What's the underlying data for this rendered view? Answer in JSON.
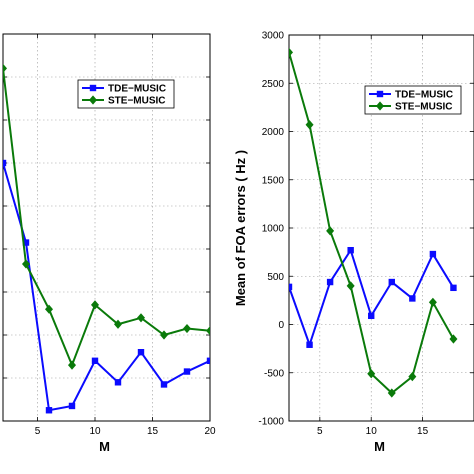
{
  "chart_data": [
    {
      "type": "line",
      "title": "",
      "xlabel": "M",
      "ylabel": "",
      "xlim": [
        2,
        20
      ],
      "x_ticks": [
        5,
        10,
        15,
        20
      ],
      "grid": true,
      "legend_position": "top-center",
      "series": [
        {
          "name": "TDE−MUSIC",
          "color": "#0b0bff",
          "marker": "square",
          "x": [
            2,
            4,
            6,
            8,
            10,
            12,
            14,
            16,
            18,
            20
          ],
          "y": [
            6.0,
            4.15,
            0.25,
            0.35,
            1.4,
            0.9,
            1.6,
            0.85,
            1.15,
            1.4
          ]
        },
        {
          "name": "STE−MUSIC",
          "color": "#0a7a0a",
          "marker": "diamond",
          "x": [
            2,
            4,
            6,
            8,
            10,
            12,
            14,
            16,
            18,
            20
          ],
          "y": [
            8.2,
            3.65,
            2.6,
            1.3,
            2.7,
            2.25,
            2.4,
            2.0,
            2.15,
            2.1
          ]
        }
      ]
    },
    {
      "type": "line",
      "title": "",
      "xlabel": "M",
      "ylabel": "Mean of FOA errors ( Hz )",
      "xlim": [
        2,
        20
      ],
      "ylim": [
        -1000,
        3000
      ],
      "x_ticks": [
        5,
        10,
        15
      ],
      "y_ticks": [
        -1000,
        -500,
        0,
        500,
        1000,
        1500,
        2000,
        2500,
        3000
      ],
      "grid": true,
      "legend_position": "top-right",
      "series": [
        {
          "name": "TDE−MUSIC",
          "color": "#0b0bff",
          "marker": "square",
          "x": [
            2,
            4,
            6,
            8,
            10,
            12,
            14,
            16,
            18
          ],
          "y": [
            390,
            -210,
            440,
            770,
            90,
            440,
            270,
            730,
            380
          ]
        },
        {
          "name": "STE−MUSIC",
          "color": "#0a7a0a",
          "marker": "diamond",
          "x": [
            2,
            4,
            6,
            8,
            10,
            12,
            14,
            16,
            18
          ],
          "y": [
            2820,
            2070,
            970,
            400,
            -510,
            -710,
            -540,
            230,
            -150
          ]
        }
      ]
    }
  ]
}
